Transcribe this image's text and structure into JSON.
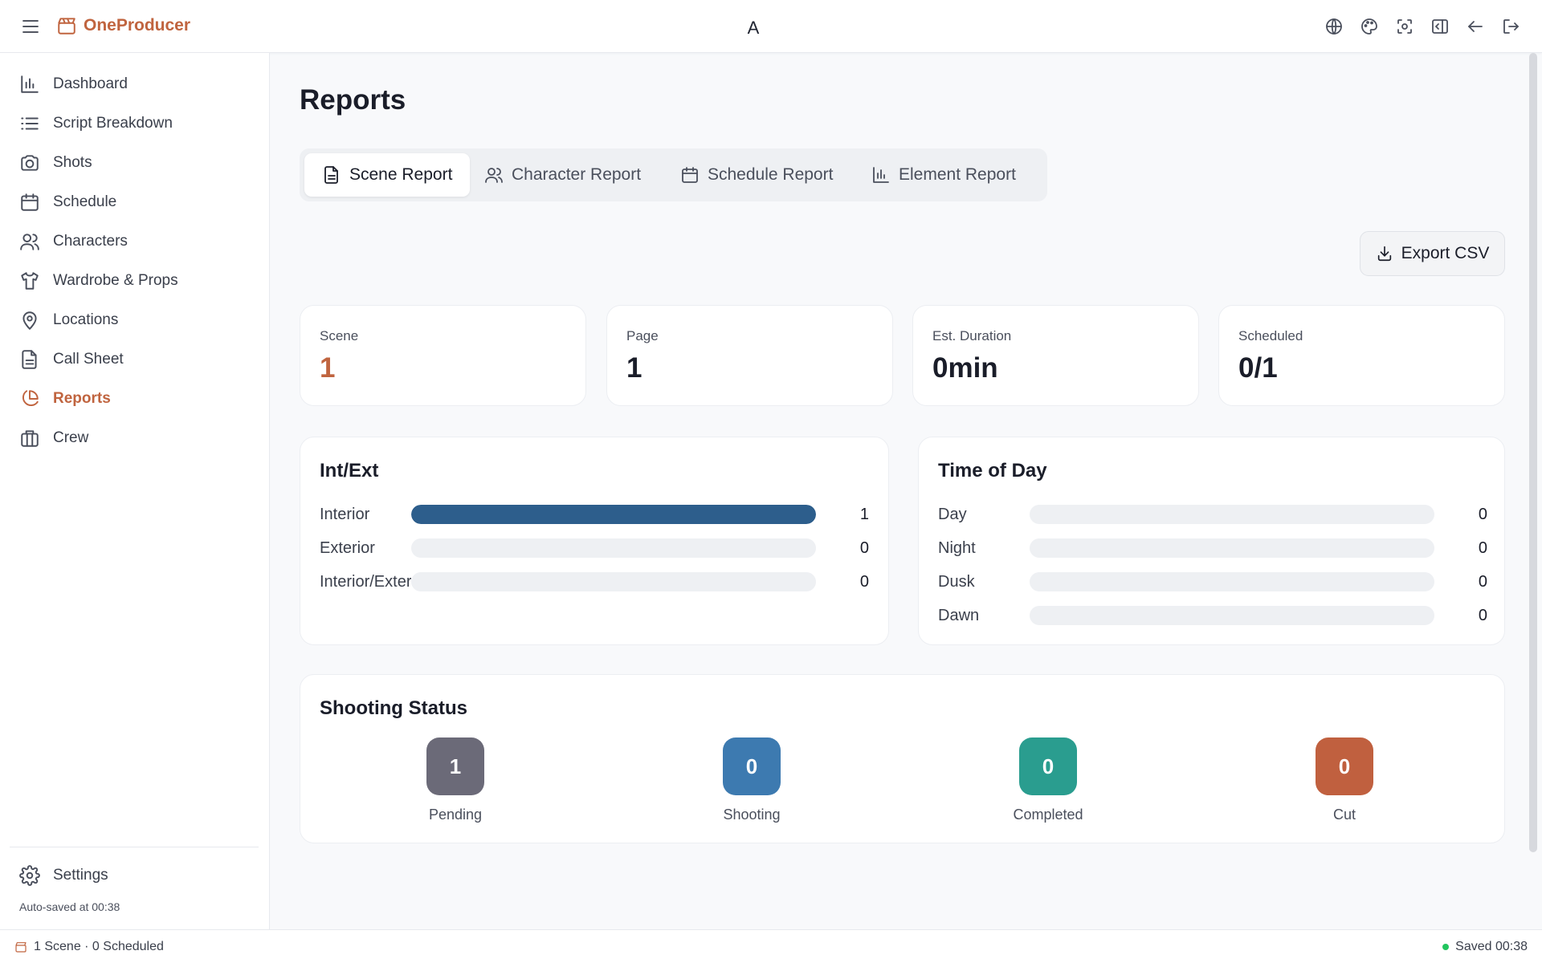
{
  "app": {
    "name": "OneProducer",
    "center_title": "A"
  },
  "sidebar": {
    "items": [
      {
        "label": "Dashboard",
        "icon": "bar-chart-icon"
      },
      {
        "label": "Script Breakdown",
        "icon": "list-icon"
      },
      {
        "label": "Shots",
        "icon": "camera-icon"
      },
      {
        "label": "Schedule",
        "icon": "calendar-icon"
      },
      {
        "label": "Characters",
        "icon": "users-icon"
      },
      {
        "label": "Wardrobe & Props",
        "icon": "shirt-icon"
      },
      {
        "label": "Locations",
        "icon": "map-pin-icon"
      },
      {
        "label": "Call Sheet",
        "icon": "document-icon"
      },
      {
        "label": "Reports",
        "icon": "pie-chart-icon",
        "active": true
      },
      {
        "label": "Crew",
        "icon": "briefcase-icon"
      }
    ],
    "settings_label": "Settings",
    "autosave": "Auto-saved at 00:38"
  },
  "page": {
    "title": "Reports",
    "tabs": [
      {
        "label": "Scene Report",
        "icon": "document-icon",
        "active": true
      },
      {
        "label": "Character Report",
        "icon": "users-icon"
      },
      {
        "label": "Schedule Report",
        "icon": "calendar-icon"
      },
      {
        "label": "Element Report",
        "icon": "bar-chart-icon"
      }
    ],
    "export_label": "Export CSV"
  },
  "stats": [
    {
      "label": "Scene",
      "value": "1",
      "accent": true
    },
    {
      "label": "Page",
      "value": "1"
    },
    {
      "label": "Est. Duration",
      "value": "0min"
    },
    {
      "label": "Scheduled",
      "value": "0/1"
    }
  ],
  "int_ext": {
    "title": "Int/Ext",
    "rows": [
      {
        "label": "Interior",
        "count": "1",
        "fraction": 1.0
      },
      {
        "label": "Exterior",
        "count": "0",
        "fraction": 0
      },
      {
        "label": "Interior/Exterior",
        "count": "0",
        "fraction": 0
      }
    ]
  },
  "time_of_day": {
    "title": "Time of Day",
    "rows": [
      {
        "label": "Day",
        "count": "0",
        "fraction": 0
      },
      {
        "label": "Night",
        "count": "0",
        "fraction": 0
      },
      {
        "label": "Dusk",
        "count": "0",
        "fraction": 0
      },
      {
        "label": "Dawn",
        "count": "0",
        "fraction": 0
      }
    ]
  },
  "shooting_status": {
    "title": "Shooting Status",
    "items": [
      {
        "label": "Pending",
        "value": "1",
        "color": "#6b6a78"
      },
      {
        "label": "Shooting",
        "value": "0",
        "color": "#3d7ab0"
      },
      {
        "label": "Completed",
        "value": "0",
        "color": "#2a9d8f"
      },
      {
        "label": "Cut",
        "value": "0",
        "color": "#c0603f"
      }
    ]
  },
  "footer": {
    "left": "1 Scene · 0 Scheduled",
    "right": "Saved 00:38"
  },
  "colors": {
    "accent": "#c0643f",
    "bar": "#2d5e8c",
    "saved_dot": "#22c55e"
  }
}
